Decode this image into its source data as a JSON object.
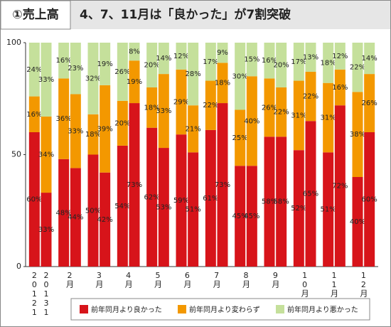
{
  "chart_data": {
    "type": "stacked_bar",
    "title_badge": "①売上高",
    "title": "4、7、11月は「良かった」が7割突破",
    "categories": [
      "20121",
      "20131",
      "2月",
      null,
      "3月",
      null,
      "4月",
      null,
      "5月",
      null,
      "6月",
      null,
      "7月",
      null,
      "8月",
      null,
      "9月",
      null,
      "10月",
      null,
      "11月",
      null,
      "12月",
      null
    ],
    "series": [
      {
        "name": "前年同月より良かった",
        "color": "#d7141a",
        "values": [
          60,
          33,
          48,
          44,
          50,
          42,
          54,
          73,
          62,
          53,
          59,
          51,
          61,
          73,
          45,
          45,
          58,
          58,
          52,
          65,
          51,
          72,
          40,
          60
        ],
        "value_labels": [
          "60%",
          "33%",
          "48%",
          "44%",
          "50%",
          "42%",
          "54%",
          "73%",
          "62%",
          "53%",
          "59%",
          "51%",
          "61%",
          "73%",
          "45%",
          "45%",
          "58%",
          "58%",
          "52%",
          "65%",
          "51%",
          "72%",
          "40%",
          "60%"
        ]
      },
      {
        "name": "前年同月より変わらず",
        "color": "#f39800",
        "values": [
          16,
          34,
          36,
          33,
          18,
          39,
          20,
          19,
          18,
          33,
          29,
          21,
          22,
          18,
          25,
          40,
          26,
          22,
          31,
          22,
          31,
          16,
          38,
          26
        ],
        "value_labels": [
          "16%",
          "34%",
          "36%",
          "33%",
          "18%",
          "39%",
          "20%",
          "19%",
          "18%",
          "33%",
          "29%",
          "21%",
          "22%",
          "18%",
          "25%",
          "40%",
          "26%",
          "22%",
          "31%",
          "22%",
          "31%",
          "16%",
          "38%",
          "26%"
        ]
      },
      {
        "name": "前年同月より悪かった",
        "color": "#c5e09b",
        "values": [
          24,
          33,
          16,
          23,
          32,
          19,
          26,
          8,
          20,
          14,
          12,
          28,
          17,
          9,
          30,
          15,
          16,
          20,
          17,
          13,
          18,
          12,
          22,
          14
        ],
        "value_labels": [
          "24%",
          "33%",
          "16%",
          "23%",
          "32%",
          "19%",
          "26%",
          "8%",
          "20%",
          "14%",
          "12%",
          "28%",
          "17%",
          "9%",
          "30%",
          "15%",
          "16%",
          "20%",
          "17%",
          "13%",
          "18%",
          "12%",
          "22%",
          "14%"
        ]
      }
    ],
    "ylim": [
      0,
      100
    ],
    "yticks": [
      0,
      50,
      100
    ],
    "grid": false
  }
}
